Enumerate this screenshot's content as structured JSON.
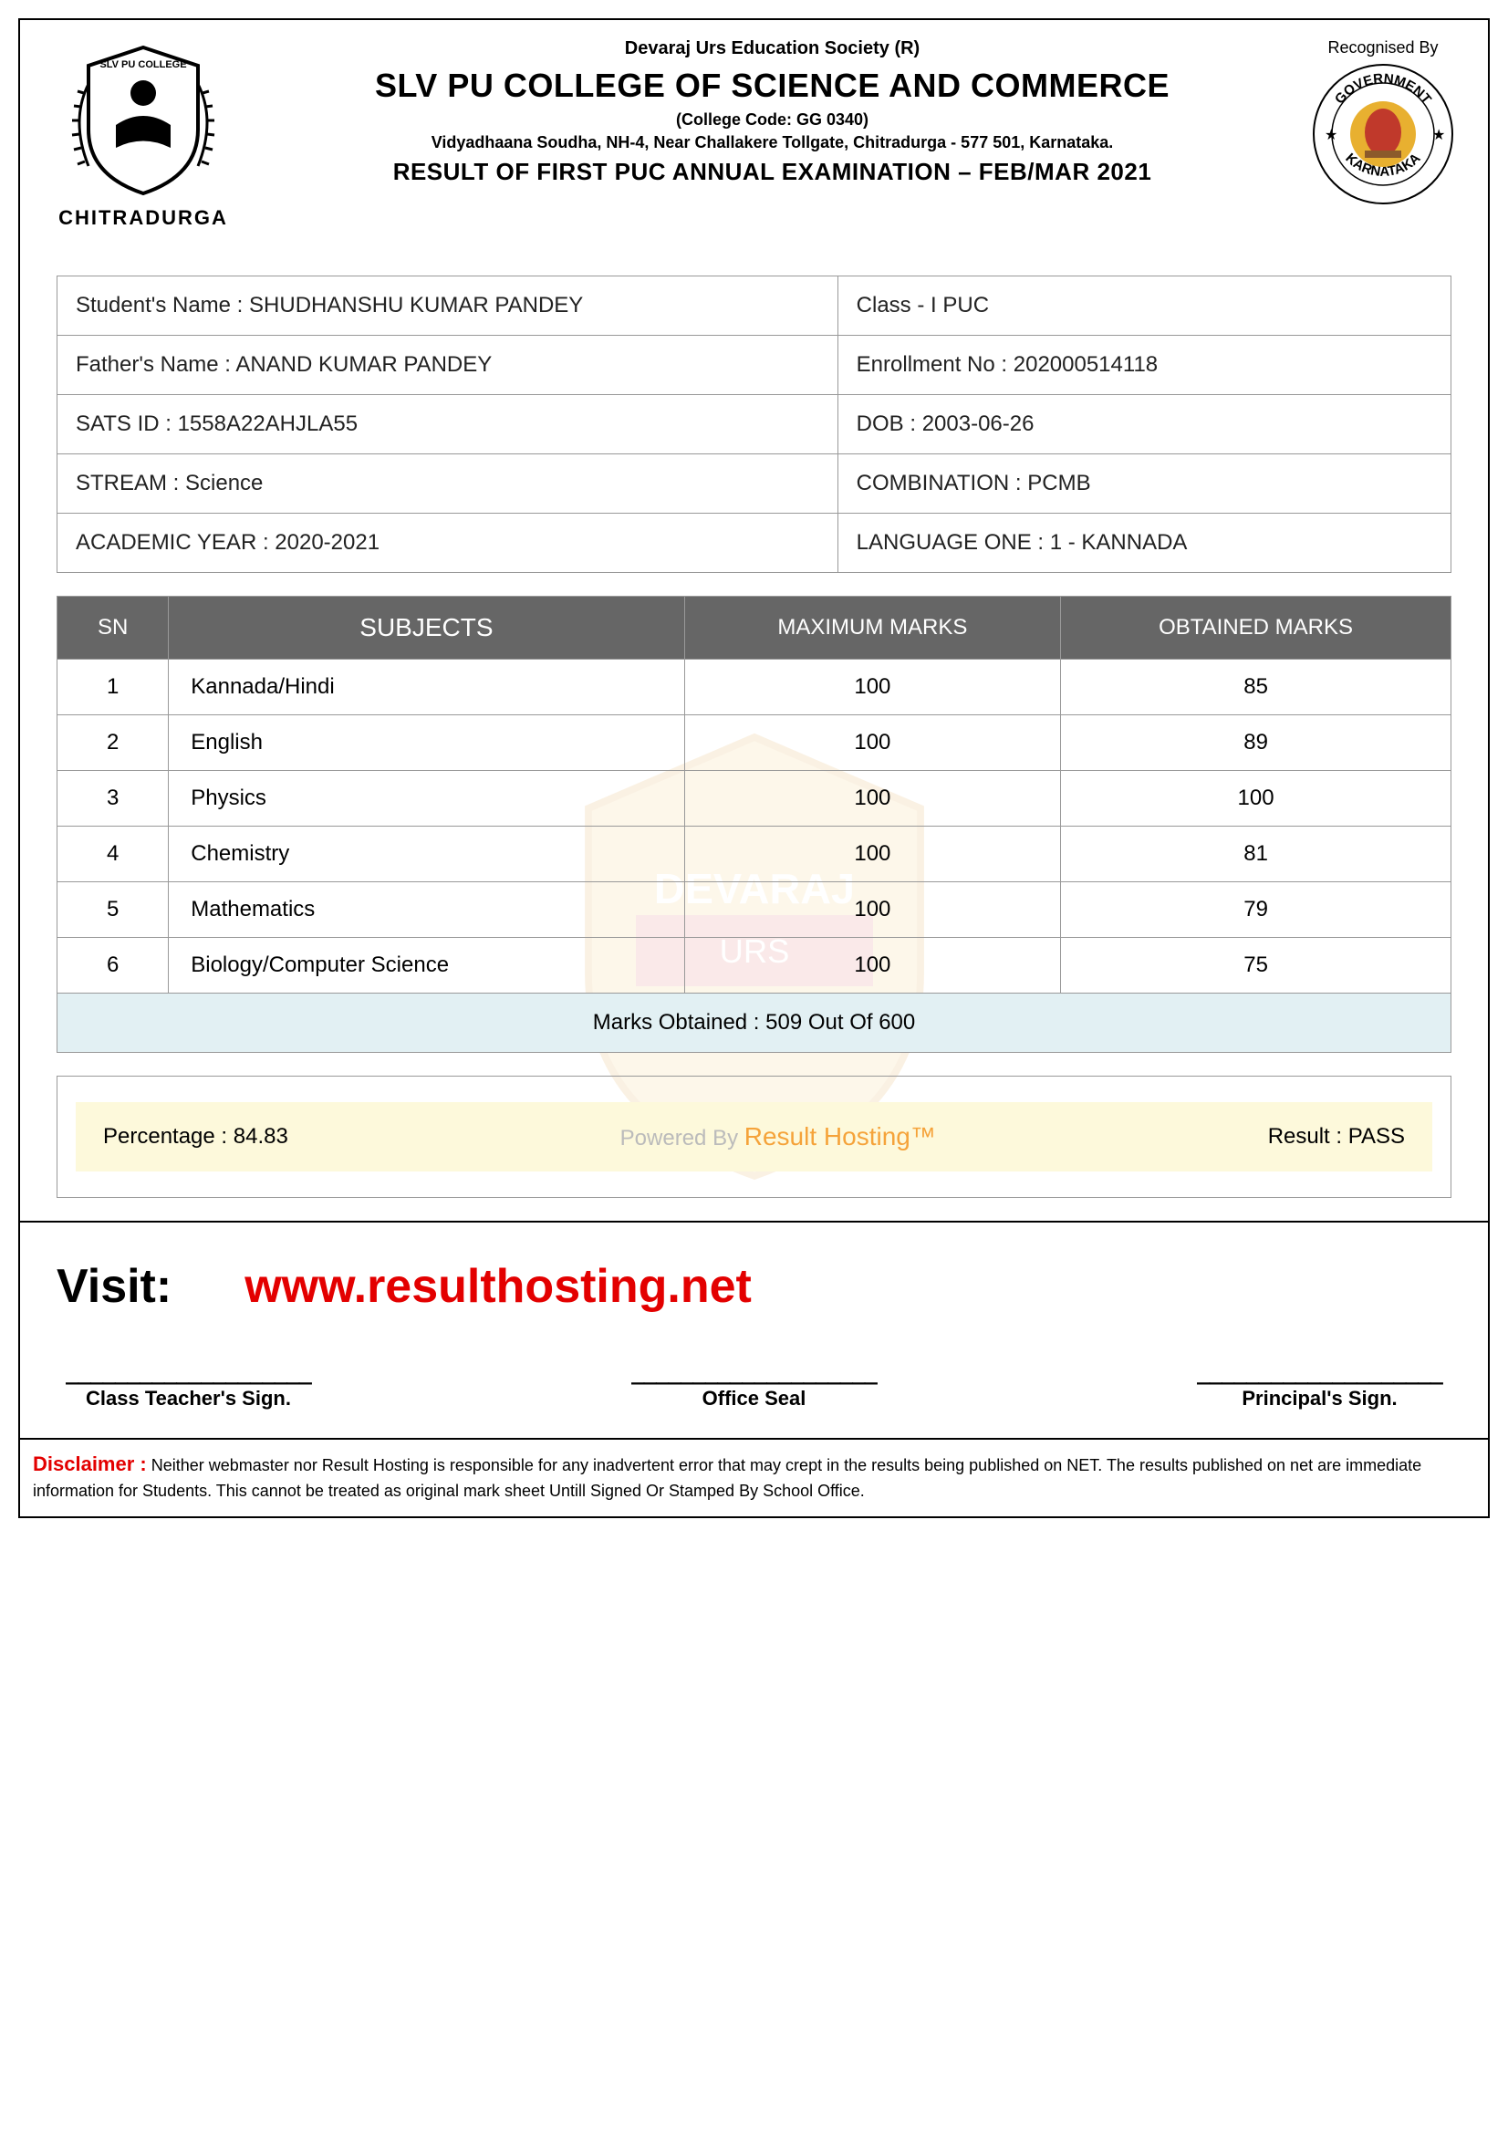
{
  "header": {
    "society": "Devaraj Urs Education Society (R)",
    "college_name": "SLV PU COLLEGE OF SCIENCE AND COMMERCE",
    "college_code": "(College Code: GG 0340)",
    "address": "Vidyadhaana Soudha, NH-4, Near Challakere Tollgate, Chitradurga - 577 501, Karnataka.",
    "result_title": "RESULT OF FIRST PUC ANNUAL EXAMINATION – FEB/MAR 2021",
    "logo_left_text": "CHITRADURGA",
    "recognised_label": "Recognised By"
  },
  "info": {
    "student_name_label": "Student's Name :",
    "student_name": "SHUDHANSHU KUMAR PANDEY",
    "class_label": "Class -",
    "class": "I PUC",
    "father_name_label": "Father's Name :",
    "father_name": "ANAND KUMAR PANDEY",
    "enrollment_label": "Enrollment No :",
    "enrollment": "202000514118",
    "sats_label": "SATS ID :",
    "sats": "1558A22AHJLA55",
    "dob_label": "DOB :",
    "dob": "2003-06-26",
    "stream_label": "STREAM :",
    "stream": "Science",
    "combination_label": "COMBINATION :",
    "combination": "PCMB",
    "year_label": "ACADEMIC YEAR :",
    "year": "2020-2021",
    "lang_label": "LANGUAGE ONE :",
    "lang": "1 - KANNADA"
  },
  "marks": {
    "columns": {
      "sn": "SN",
      "subjects": "SUBJECTS",
      "max": "MAXIMUM MARKS",
      "obtained": "OBTAINED MARKS"
    },
    "rows": [
      {
        "sn": "1",
        "subject": "Kannada/Hindi",
        "max": "100",
        "obtained": "85"
      },
      {
        "sn": "2",
        "subject": "English",
        "max": "100",
        "obtained": "89"
      },
      {
        "sn": "3",
        "subject": "Physics",
        "max": "100",
        "obtained": "100"
      },
      {
        "sn": "4",
        "subject": "Chemistry",
        "max": "100",
        "obtained": "81"
      },
      {
        "sn": "5",
        "subject": "Mathematics",
        "max": "100",
        "obtained": "79"
      },
      {
        "sn": "6",
        "subject": "Biology/Computer Science",
        "max": "100",
        "obtained": "75"
      }
    ],
    "total_label": "Marks Obtained : 509 Out Of 600"
  },
  "summary": {
    "percentage_label": "Percentage :",
    "percentage": "84.83",
    "powered_prefix": "Powered By ",
    "powered_brand": "Result Hosting™",
    "result_label": "Result :",
    "result": "PASS"
  },
  "visit": {
    "label": "Visit:",
    "url": "www.resulthosting.net"
  },
  "signatures": {
    "line": "____________________",
    "teacher": "Class Teacher's Sign.",
    "seal": "Office Seal",
    "principal": "Principal's Sign."
  },
  "disclaimer": {
    "label": "Disclaimer :",
    "text": "Neither webmaster nor Result Hosting is responsible for any inadvertent error that may crept in the results being published on NET. The results published on net are immediate information for Students. This cannot be treated as original mark sheet Untill Signed Or Stamped By School Office."
  },
  "colors": {
    "header_bg": "#666666",
    "total_bg": "#e2f0f3",
    "summary_bg": "#fdf9db",
    "red": "#e30000",
    "orange": "#f5a33a"
  }
}
